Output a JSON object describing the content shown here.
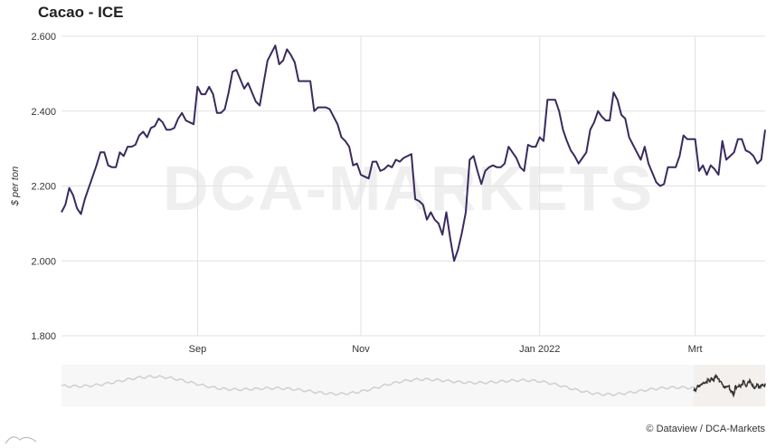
{
  "header": {
    "title": "Cacao - ICE"
  },
  "footer": {
    "credit": "© Dataview / DCA-Markets"
  },
  "watermark": {
    "text": "DCA-MARKETS"
  },
  "colors": {
    "line": "#3a2a5e",
    "grid": "#e1e1e1",
    "navigator": "#cfcfcf",
    "navigator_focus": "#333333",
    "navigator_bg": "#f3f0ee"
  },
  "chart_data": {
    "type": "line",
    "title": "Cacao - ICE",
    "xlabel": "",
    "ylabel": "$ per ton",
    "ylim": [
      1800,
      2600
    ],
    "yticks": [
      1800,
      2000,
      2200,
      2400,
      2600
    ],
    "ytick_labels": [
      "1.800",
      "2.000",
      "2.200",
      "2.400",
      "2.600"
    ],
    "xtick_labels": [
      {
        "label": "Sep",
        "index": 35
      },
      {
        "label": "Nov",
        "index": 77
      },
      {
        "label": "Jan 2022",
        "index": 123
      },
      {
        "label": "Mrt",
        "index": 163
      }
    ],
    "grid": true,
    "legend": "none",
    "series": [
      {
        "values": [
          2130,
          2150,
          2195,
          2175,
          2140,
          2125,
          2165,
          2195,
          2225,
          2255,
          2290,
          2290,
          2255,
          2250,
          2250,
          2290,
          2280,
          2305,
          2305,
          2310,
          2335,
          2345,
          2330,
          2355,
          2360,
          2380,
          2370,
          2350,
          2350,
          2355,
          2380,
          2395,
          2375,
          2370,
          2365,
          2465,
          2445,
          2445,
          2465,
          2445,
          2395,
          2395,
          2405,
          2450,
          2505,
          2510,
          2485,
          2460,
          2475,
          2450,
          2425,
          2415,
          2475,
          2535,
          2555,
          2575,
          2525,
          2535,
          2565,
          2550,
          2530,
          2480,
          2480,
          2480,
          2480,
          2400,
          2410,
          2410,
          2410,
          2405,
          2385,
          2365,
          2330,
          2320,
          2305,
          2255,
          2260,
          2230,
          2225,
          2220,
          2265,
          2265,
          2240,
          2245,
          2255,
          2250,
          2270,
          2265,
          2275,
          2280,
          2285,
          2165,
          2160,
          2150,
          2110,
          2130,
          2110,
          2100,
          2070,
          2130,
          2060,
          2000,
          2030,
          2075,
          2130,
          2270,
          2280,
          2240,
          2205,
          2240,
          2250,
          2255,
          2250,
          2250,
          2260,
          2305,
          2290,
          2275,
          2250,
          2240,
          2310,
          2305,
          2305,
          2330,
          2320,
          2430,
          2430,
          2430,
          2400,
          2350,
          2320,
          2295,
          2280,
          2260,
          2275,
          2290,
          2350,
          2370,
          2400,
          2385,
          2375,
          2375,
          2450,
          2430,
          2390,
          2380,
          2330,
          2310,
          2290,
          2270,
          2305,
          2260,
          2235,
          2210,
          2200,
          2205,
          2250,
          2250,
          2250,
          2280,
          2335,
          2325,
          2325,
          2325,
          2240,
          2255,
          2230,
          2255,
          2245,
          2230,
          2320,
          2270,
          2280,
          2290,
          2325,
          2325,
          2295,
          2290,
          2280,
          2260,
          2270,
          2350
        ]
      }
    ]
  }
}
